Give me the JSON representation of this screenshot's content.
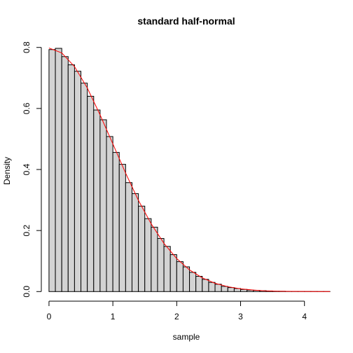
{
  "chart_data": {
    "type": "bar",
    "title": "standard half-normal",
    "xlabel": "sample",
    "ylabel": "Density",
    "xlim": [
      -0.12,
      4.42
    ],
    "ylim": [
      -0.02,
      0.82
    ],
    "x_ticks": [
      0,
      1,
      2,
      3,
      4
    ],
    "x_tick_labels": [
      "0",
      "1",
      "2",
      "3",
      "4"
    ],
    "y_ticks": [
      0.0,
      0.2,
      0.4,
      0.6,
      0.8
    ],
    "y_tick_labels": [
      "0.0",
      "0.2",
      "0.4",
      "0.6",
      "0.8"
    ],
    "bin_width": 0.1,
    "bin_start": 0,
    "values": [
      0.793,
      0.797,
      0.77,
      0.743,
      0.722,
      0.683,
      0.64,
      0.595,
      0.563,
      0.508,
      0.456,
      0.417,
      0.357,
      0.321,
      0.28,
      0.239,
      0.211,
      0.174,
      0.148,
      0.121,
      0.098,
      0.081,
      0.063,
      0.05,
      0.04,
      0.03,
      0.024,
      0.017,
      0.013,
      0.01,
      0.007,
      0.005,
      0.004,
      0.003,
      0.002,
      0.001,
      0.001,
      0.0005,
      0.0005,
      0.0003,
      0.0002,
      0.0002,
      0.0001,
      0.0001
    ],
    "curve": {
      "name": "",
      "color": "#ff0000",
      "x": [
        0,
        0.2,
        0.4,
        0.6,
        0.8,
        1.0,
        1.2,
        1.4,
        1.6,
        1.8,
        2.0,
        2.2,
        2.4,
        2.6,
        2.8,
        3.0,
        3.2,
        3.4,
        3.6,
        3.8,
        4.0,
        4.2,
        4.4
      ],
      "y": [
        0.798,
        0.782,
        0.737,
        0.667,
        0.579,
        0.484,
        0.388,
        0.299,
        0.222,
        0.158,
        0.108,
        0.071,
        0.045,
        0.027,
        0.016,
        0.009,
        0.005,
        0.002,
        0.001,
        0.0006,
        0.0003,
        0.0001,
        5e-05
      ]
    },
    "bar_color": "#d3d3d3",
    "bar_stroke": "#000000",
    "grid": false
  }
}
